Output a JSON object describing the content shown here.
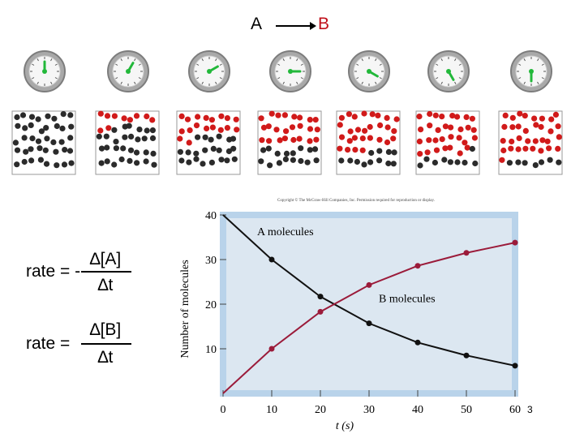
{
  "reaction": {
    "reactant": "A",
    "product": "B"
  },
  "equations": {
    "rate_a_label": "rate = -",
    "rate_a_numerator": "∆[A]",
    "rate_a_denominator": "∆t",
    "rate_b_label": "rate =",
    "rate_b_numerator": "∆[B]",
    "rate_b_denominator": "∆t"
  },
  "slide_number": "3",
  "copyright": "Copyright © The McGraw-Hill Companies, Inc. Permission required for reproduction or display.",
  "colors": {
    "a_molecule": "#2b2b2b",
    "b_molecule": "#d11a1a",
    "clock_hand": "#22b83a",
    "curve_a": "#111111",
    "curve_b": "#9b1b3a",
    "plot_bg": "#dce7f1",
    "plot_frame": "#b9d3ea"
  },
  "snapshots": [
    {
      "clock_hand_fraction": 0.0,
      "a_count": 40,
      "b_count": 0
    },
    {
      "clock_hand_fraction": 0.167,
      "a_count": 30,
      "b_count": 10
    },
    {
      "clock_hand_fraction": 0.333,
      "a_count": 22,
      "b_count": 18
    },
    {
      "clock_hand_fraction": 0.5,
      "a_count": 16,
      "b_count": 24
    },
    {
      "clock_hand_fraction": 0.667,
      "a_count": 12,
      "b_count": 28
    },
    {
      "clock_hand_fraction": 0.833,
      "a_count": 9,
      "b_count": 31
    },
    {
      "clock_hand_fraction": 1.0,
      "a_count": 7,
      "b_count": 33
    }
  ],
  "chart_data": {
    "type": "line",
    "title": "",
    "xlabel": "t (s)",
    "ylabel": "Number of molecules",
    "xlim": [
      0,
      60
    ],
    "ylim": [
      0,
      40
    ],
    "x_ticks": [
      0,
      10,
      20,
      30,
      40,
      50,
      60
    ],
    "y_ticks": [
      10,
      20,
      30,
      40
    ],
    "grid": false,
    "series": [
      {
        "name": "A molecules",
        "x": [
          0,
          10,
          20,
          30,
          40,
          50,
          60
        ],
        "values": [
          40,
          30,
          21.7,
          15.7,
          11.4,
          8.5,
          6.2
        ]
      },
      {
        "name": "B molecules",
        "x": [
          0,
          10,
          20,
          30,
          40,
          50,
          60
        ],
        "values": [
          0,
          10,
          18.3,
          24.3,
          28.6,
          31.5,
          33.8
        ]
      }
    ]
  }
}
